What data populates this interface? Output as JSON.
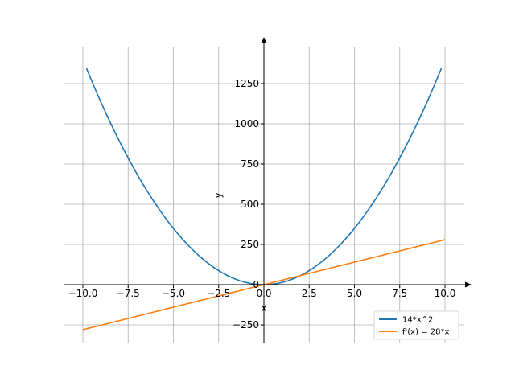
{
  "chart_data": {
    "type": "line",
    "xlabel": "x",
    "ylabel": "y",
    "xlim": [
      -10.0,
      10.0
    ],
    "ylim": [
      -290,
      1400
    ],
    "grid": true,
    "legend_position": "lower-right",
    "xticks": [
      -10.0,
      -7.5,
      -5.0,
      -2.5,
      0.0,
      2.5,
      5.0,
      7.5,
      10.0
    ],
    "xtick_labels": [
      "−10.0",
      "−7.5",
      "−5.0",
      "−2.5",
      "0.0",
      "2.5",
      "5.0",
      "7.5",
      "10.0"
    ],
    "yticks": [
      -250,
      0,
      250,
      500,
      750,
      1000,
      1250
    ],
    "ytick_labels": [
      "−250",
      "0",
      "250",
      "500",
      "750",
      "1000",
      "1250"
    ],
    "series": [
      {
        "name": "14*x^2",
        "color": "#1f77b4",
        "x_range": [
          -9.8,
          9.8
        ],
        "formula": "14*x^2"
      },
      {
        "name": "f'(x) = 28*x",
        "color": "#ff7f0e",
        "x_range": [
          -10.0,
          10.0
        ],
        "formula": "28*x"
      }
    ]
  }
}
